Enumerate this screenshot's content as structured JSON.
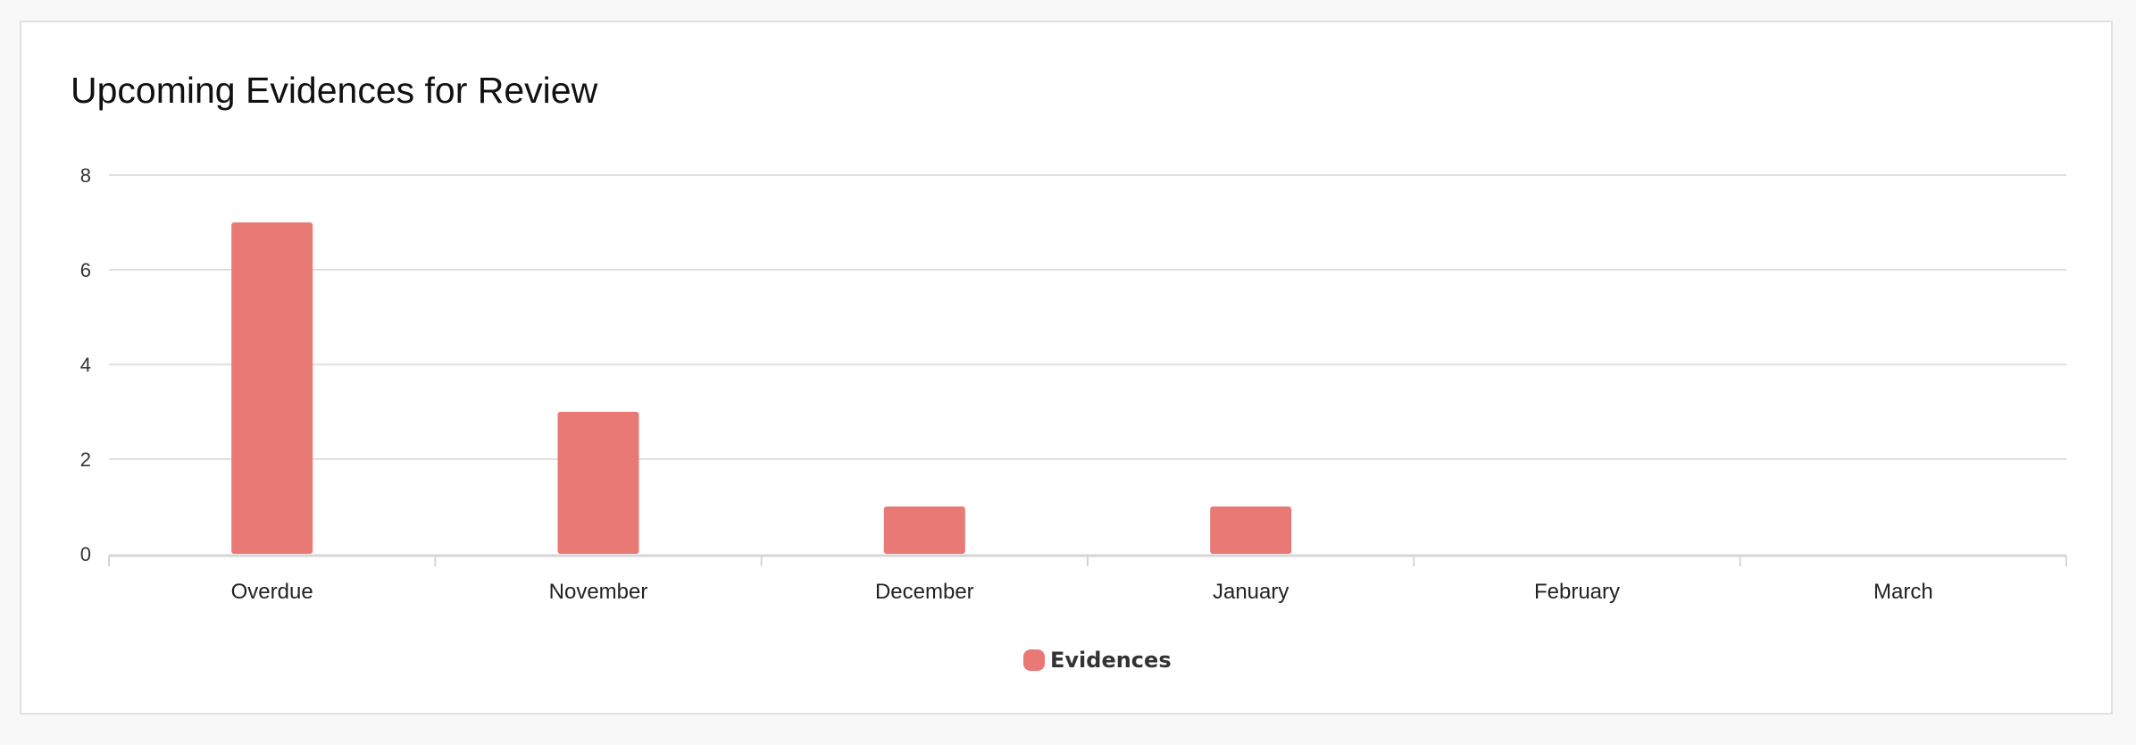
{
  "card": {
    "title": "Upcoming Evidences for Review"
  },
  "colors": {
    "bar": "#e87975",
    "grid": "#e0e0e0",
    "axis": "#d6d6d6"
  },
  "chart_data": {
    "type": "bar",
    "categories": [
      "Overdue",
      "November",
      "December",
      "January",
      "February",
      "March"
    ],
    "series": [
      {
        "name": "Evidences",
        "values": [
          7,
          3,
          1,
          1,
          0,
          0
        ]
      }
    ],
    "ylim": [
      0,
      8
    ],
    "yticks": [
      0,
      2,
      4,
      6,
      8
    ],
    "grid": true,
    "legend_position": "bottom-center"
  }
}
